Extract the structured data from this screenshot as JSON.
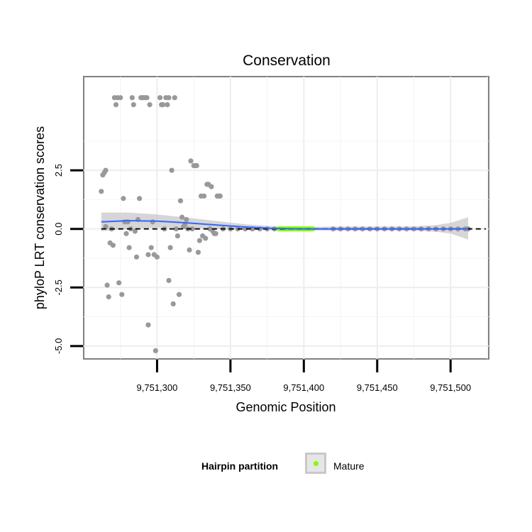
{
  "chart_data": {
    "type": "scatter",
    "title": "Conservation",
    "xlabel": "Genomic Position",
    "ylabel": "phyloP LRT conservation scores",
    "xlim": [
      9751250,
      9751526
    ],
    "ylim": [
      -5.55,
      6.5
    ],
    "x_ticks": [
      9751300,
      9751350,
      9751400,
      9751450,
      9751500
    ],
    "x_tick_labels": [
      "9,751,300",
      "9,751,350",
      "9,751,400",
      "9,751,450",
      "9,751,500"
    ],
    "y_ticks": [
      -5.0,
      -2.5,
      0.0,
      2.5
    ],
    "y_tick_labels": [
      "-5.0",
      "-2.5",
      "0.0",
      "2.5"
    ],
    "reference_line_y": 0,
    "grid": true,
    "legend": {
      "title": "Hairpin partition",
      "entries": [
        {
          "label": "Mature",
          "color": "#80ff00"
        }
      ],
      "placement": "bottom"
    },
    "colors": {
      "points": "#999999",
      "mature": "#80ff00",
      "smooth": "#3366ff",
      "ribbon": "#cccccc",
      "refline": "#000000",
      "border": "#808080"
    },
    "points": [
      [
        9751262,
        1.6
      ],
      [
        9751263,
        2.3
      ],
      [
        9751264,
        2.4
      ],
      [
        9751265,
        2.5
      ],
      [
        9751265,
        0.1
      ],
      [
        9751266,
        -2.4
      ],
      [
        9751267,
        -2.9
      ],
      [
        9751268,
        -0.6
      ],
      [
        9751269,
        0.0
      ],
      [
        9751270,
        -0.7
      ],
      [
        9751271,
        5.6
      ],
      [
        9751272,
        5.3
      ],
      [
        9751273,
        5.6
      ],
      [
        9751274,
        -2.3
      ],
      [
        9751275,
        5.6
      ],
      [
        9751276,
        -2.8
      ],
      [
        9751277,
        1.3
      ],
      [
        9751278,
        0.3
      ],
      [
        9751279,
        -0.2
      ],
      [
        9751280,
        0.3
      ],
      [
        9751281,
        -0.8
      ],
      [
        9751282,
        0.0
      ],
      [
        9751283,
        5.6
      ],
      [
        9751284,
        5.3
      ],
      [
        9751285,
        -0.1
      ],
      [
        9751286,
        -1.2
      ],
      [
        9751287,
        0.4
      ],
      [
        9751288,
        1.3
      ],
      [
        9751289,
        5.6
      ],
      [
        9751290,
        5.6
      ],
      [
        9751291,
        5.6
      ],
      [
        9751292,
        5.6
      ],
      [
        9751293,
        5.6
      ],
      [
        9751294,
        -1.1
      ],
      [
        9751294,
        -4.1
      ],
      [
        9751295,
        5.3
      ],
      [
        9751296,
        -0.8
      ],
      [
        9751297,
        0.3
      ],
      [
        9751298,
        -1.1
      ],
      [
        9751299,
        -5.2
      ],
      [
        9751300,
        -1.2
      ],
      [
        9751302,
        5.6
      ],
      [
        9751303,
        5.3
      ],
      [
        9751304,
        5.3
      ],
      [
        9751305,
        0.0
      ],
      [
        9751306,
        5.6
      ],
      [
        9751307,
        5.3
      ],
      [
        9751308,
        5.6
      ],
      [
        9751308,
        -2.2
      ],
      [
        9751309,
        -0.8
      ],
      [
        9751310,
        2.5
      ],
      [
        9751311,
        -3.2
      ],
      [
        9751312,
        5.6
      ],
      [
        9751313,
        0.0
      ],
      [
        9751314,
        -0.3
      ],
      [
        9751315,
        -2.8
      ],
      [
        9751316,
        1.2
      ],
      [
        9751317,
        0.5
      ],
      [
        9751318,
        0.1
      ],
      [
        9751319,
        0.2
      ],
      [
        9751320,
        0.4
      ],
      [
        9751321,
        0.0
      ],
      [
        9751322,
        -0.9
      ],
      [
        9751323,
        2.9
      ],
      [
        9751324,
        0.0
      ],
      [
        9751325,
        2.7
      ],
      [
        9751326,
        2.7
      ],
      [
        9751327,
        2.7
      ],
      [
        9751328,
        -1.0
      ],
      [
        9751329,
        -0.5
      ],
      [
        9751330,
        1.4
      ],
      [
        9751331,
        -0.3
      ],
      [
        9751332,
        1.4
      ],
      [
        9751333,
        -0.4
      ],
      [
        9751334,
        1.9
      ],
      [
        9751335,
        1.9
      ],
      [
        9751336,
        0.0
      ],
      [
        9751337,
        1.8
      ],
      [
        9751338,
        -0.1
      ],
      [
        9751339,
        -0.2
      ],
      [
        9751340,
        -0.2
      ],
      [
        9751341,
        1.4
      ],
      [
        9751342,
        1.4
      ],
      [
        9751343,
        1.4
      ],
      [
        9751345,
        0.0
      ],
      [
        9751350,
        0.0
      ],
      [
        9751355,
        0.0
      ],
      [
        9751360,
        0.0
      ],
      [
        9751365,
        0.0
      ],
      [
        9751370,
        0.0
      ],
      [
        9751375,
        0.0
      ],
      [
        9751380,
        0.0
      ],
      [
        9751420,
        0.0
      ],
      [
        9751425,
        0.0
      ],
      [
        9751430,
        0.0
      ],
      [
        9751435,
        0.0
      ],
      [
        9751440,
        0.0
      ],
      [
        9751445,
        0.0
      ],
      [
        9751450,
        0.0
      ],
      [
        9751455,
        0.0
      ],
      [
        9751460,
        0.0
      ],
      [
        9751465,
        0.0
      ],
      [
        9751470,
        0.0
      ],
      [
        9751475,
        0.0
      ],
      [
        9751480,
        0.0
      ],
      [
        9751485,
        0.0
      ],
      [
        9751490,
        0.0
      ],
      [
        9751495,
        0.0
      ],
      [
        9751500,
        0.0
      ],
      [
        9751505,
        0.0
      ],
      [
        9751510,
        0.0
      ],
      [
        9751512,
        0.0
      ]
    ],
    "mature_range": [
      9751383,
      9751406
    ],
    "smooth_line": [
      [
        9751262,
        0.3
      ],
      [
        9751280,
        0.35
      ],
      [
        9751300,
        0.33
      ],
      [
        9751320,
        0.26
      ],
      [
        9751340,
        0.17
      ],
      [
        9751360,
        0.08
      ],
      [
        9751380,
        0.02
      ],
      [
        9751400,
        0.0
      ],
      [
        9751450,
        0.0
      ],
      [
        9751500,
        0.0
      ],
      [
        9751512,
        0.0
      ]
    ],
    "ribbon": [
      [
        9751262,
        -0.1,
        0.7
      ],
      [
        9751280,
        0.0,
        0.7
      ],
      [
        9751300,
        0.05,
        0.62
      ],
      [
        9751320,
        0.04,
        0.48
      ],
      [
        9751340,
        0.0,
        0.34
      ],
      [
        9751360,
        -0.05,
        0.2
      ],
      [
        9751380,
        -0.06,
        0.11
      ],
      [
        9751400,
        -0.06,
        0.08
      ],
      [
        9751420,
        -0.08,
        0.1
      ],
      [
        9751450,
        -0.07,
        0.1
      ],
      [
        9751475,
        -0.08,
        0.11
      ],
      [
        9751490,
        -0.12,
        0.16
      ],
      [
        9751500,
        -0.2,
        0.26
      ],
      [
        9751512,
        -0.45,
        0.5
      ]
    ]
  }
}
